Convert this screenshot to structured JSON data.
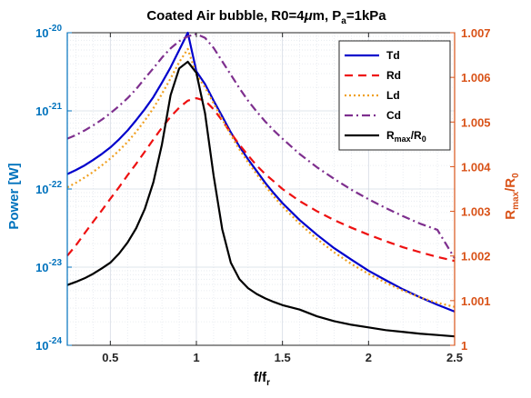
{
  "chart_data": {
    "type": "line",
    "title": {
      "prefix": "Coated Air bubble, R0=4",
      "mu": "μ",
      "after_mu": "m, P",
      "sub": "a",
      "suffix": "=1kPa"
    },
    "xlabel": {
      "main": "f/f",
      "sub": "r"
    },
    "ylabel_left": "Power [W]",
    "ylabel_right": {
      "main": "R",
      "sub": "max",
      "mid": "/R",
      "sub2": "0"
    },
    "xlim": [
      0.25,
      2.5
    ],
    "x_ticks": [
      0.5,
      1,
      1.5,
      2,
      2.5
    ],
    "x_tick_labels": [
      "0.5",
      "1",
      "1.5",
      "2",
      "2.5"
    ],
    "ylim_left": [
      1e-24,
      1e-20
    ],
    "y_left_scale": "log",
    "y_left_ticks": [
      {
        "value": 1e-24,
        "base": "10",
        "exp": "-24"
      },
      {
        "value": 1e-23,
        "base": "10",
        "exp": "-23"
      },
      {
        "value": 1e-22,
        "base": "10",
        "exp": "-22"
      },
      {
        "value": 1e-21,
        "base": "10",
        "exp": "-21"
      },
      {
        "value": 1e-20,
        "base": "10",
        "exp": "-20"
      }
    ],
    "ylim_right": [
      1.0,
      1.007
    ],
    "y_right_ticks": [
      1.0,
      1.001,
      1.002,
      1.003,
      1.004,
      1.005,
      1.006,
      1.007
    ],
    "y_right_tick_labels": [
      "1",
      "1.001",
      "1.002",
      "1.003",
      "1.004",
      "1.005",
      "1.006",
      "1.007"
    ],
    "grid": true,
    "legend_position": "top-right",
    "x": [
      0.25,
      0.3,
      0.35,
      0.4,
      0.45,
      0.5,
      0.55,
      0.6,
      0.65,
      0.7,
      0.75,
      0.8,
      0.85,
      0.9,
      0.95,
      1.0,
      1.05,
      1.1,
      1.15,
      1.2,
      1.25,
      1.3,
      1.35,
      1.4,
      1.45,
      1.5,
      1.6,
      1.7,
      1.8,
      1.9,
      2.0,
      2.1,
      2.2,
      2.3,
      2.4,
      2.5
    ],
    "series": [
      {
        "name": "Td",
        "axis": "left",
        "color": "#0000cc",
        "dash": "solid",
        "width": 2.2,
        "values": [
          1.55e-22,
          1.75e-22,
          2e-22,
          2.35e-22,
          2.8e-22,
          3.4e-22,
          4.3e-22,
          5.6e-22,
          7.6e-22,
          1.05e-21,
          1.5e-21,
          2.3e-21,
          3.6e-21,
          6e-21,
          1e-20,
          3.2e-21,
          2.2e-21,
          1.35e-21,
          8.5e-22,
          5.3e-22,
          3.5e-22,
          2.4e-22,
          1.7e-22,
          1.2e-22,
          8.8e-23,
          6.6e-23,
          4e-23,
          2.6e-23,
          1.75e-23,
          1.25e-23,
          9e-24,
          6.8e-24,
          5.2e-24,
          4.1e-24,
          3.3e-24,
          2.7e-24
        ]
      },
      {
        "name": "Rd",
        "axis": "left",
        "color": "#ee1111",
        "dash": "dashed",
        "width": 2.2,
        "values": [
          1.4e-23,
          1.9e-23,
          2.7e-23,
          3.8e-23,
          5.3e-23,
          7.5e-23,
          1.05e-22,
          1.5e-22,
          2.1e-22,
          3e-22,
          4.3e-22,
          6.1e-22,
          8.4e-22,
          1.1e-21,
          1.35e-21,
          1.45e-21,
          1.35e-21,
          1.05e-21,
          7.5e-22,
          5.2e-22,
          3.7e-22,
          2.7e-22,
          2e-22,
          1.55e-22,
          1.25e-22,
          1e-22,
          7e-23,
          5.2e-23,
          4e-23,
          3.2e-23,
          2.6e-23,
          2.15e-23,
          1.8e-23,
          1.55e-23,
          1.35e-23,
          1.2e-23
        ]
      },
      {
        "name": "Ld",
        "axis": "left",
        "color": "#f0a020",
        "dash": "dotted",
        "width": 2.2,
        "values": [
          1.05e-22,
          1.2e-22,
          1.4e-22,
          1.65e-22,
          2e-22,
          2.45e-22,
          3.1e-22,
          4e-22,
          5.4e-22,
          7.5e-22,
          1.08e-21,
          1.65e-21,
          2.6e-21,
          4.2e-21,
          6.2e-21,
          2.9e-21,
          2e-21,
          1.25e-21,
          7.8e-22,
          4.9e-22,
          3.2e-22,
          2.2e-22,
          1.55e-22,
          1.1e-22,
          8e-23,
          6e-23,
          3.6e-23,
          2.3e-23,
          1.55e-23,
          1.1e-23,
          8.2e-24,
          6.3e-24,
          5e-24,
          4.1e-24,
          3.5e-24,
          3.1e-24
        ]
      },
      {
        "name": "Cd",
        "axis": "left",
        "color": "#7e2f8e",
        "dash": "dashdot",
        "width": 2.2,
        "values": [
          4.4e-22,
          4.9e-22,
          5.6e-22,
          6.5e-22,
          7.7e-22,
          9.3e-22,
          1.15e-21,
          1.45e-21,
          1.9e-21,
          2.6e-21,
          3.5e-21,
          4.8e-21,
          6.3e-21,
          7.8e-21,
          9e-21,
          9.6e-21,
          8.6e-21,
          6.4e-21,
          4.3e-21,
          2.9e-21,
          1.95e-21,
          1.35e-21,
          9.8e-22,
          7.3e-22,
          5.6e-22,
          4.4e-22,
          2.8e-22,
          1.9e-22,
          1.35e-22,
          9.8e-23,
          7.4e-23,
          5.7e-23,
          4.5e-23,
          3.6e-23,
          3e-23,
          1.3e-23
        ]
      },
      {
        "name": "R_max/R_0",
        "label_main": "R",
        "label_sub": "max",
        "label_mid": "/R",
        "label_sub2": "0",
        "axis": "right",
        "color": "#000000",
        "dash": "solid",
        "width": 2.2,
        "values": [
          1.00135,
          1.00142,
          1.0015,
          1.0016,
          1.00172,
          1.00185,
          1.00205,
          1.0023,
          1.00262,
          1.00305,
          1.00365,
          1.0045,
          1.0056,
          1.0062,
          1.00635,
          1.0061,
          1.0052,
          1.0038,
          1.0026,
          1.00185,
          1.00148,
          1.00128,
          1.00115,
          1.00105,
          1.00097,
          1.0009,
          1.0008,
          1.00065,
          1.00054,
          1.00046,
          1.0004,
          1.00034,
          1.0003,
          1.00026,
          1.00023,
          1.0002
        ]
      }
    ]
  }
}
